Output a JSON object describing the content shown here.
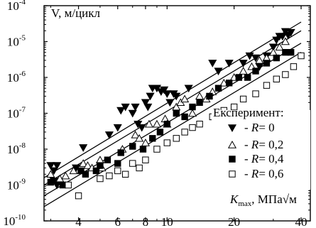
{
  "chart_data": {
    "type": "scatter",
    "title": "",
    "ylabel": "V,  м/цикл",
    "xlabel": {
      "main": "K",
      "subscript": "max",
      "unit": ", МПа√м"
    },
    "x_scale": "log",
    "y_scale": "log",
    "xlim": [
      2.8,
      44
    ],
    "ylim": [
      1e-10,
      0.0001
    ],
    "x_ticks": [
      4,
      6,
      8,
      10,
      20,
      40
    ],
    "x_tick_labels": [
      "4",
      "6",
      "8",
      "10",
      "20",
      "40"
    ],
    "y_ticks": [
      1e-10,
      1e-09,
      1e-08,
      1e-07,
      1e-06,
      1e-05,
      0.0001
    ],
    "y_tick_labels": [
      {
        "base": "10",
        "exponent": "-10"
      },
      {
        "base": "10",
        "exponent": "-9"
      },
      {
        "base": "10",
        "exponent": "-8"
      },
      {
        "base": "10",
        "exponent": "-7"
      },
      {
        "base": "10",
        "exponent": "-6"
      },
      {
        "base": "10",
        "exponent": "-5"
      },
      {
        "base": "10",
        "exponent": "-4"
      }
    ],
    "legend": {
      "title": "Експеримент:",
      "position": "right",
      "entries": [
        {
          "marker": "triangle-down-filled",
          "prefix": "- ",
          "italic": "R",
          "suffix": "= 0"
        },
        {
          "marker": "triangle-up-open",
          "prefix": "- ",
          "italic": "R",
          "suffix": "= 0,2"
        },
        {
          "marker": "square-filled",
          "prefix": "- ",
          "italic": "R",
          "suffix": "= 0,4"
        },
        {
          "marker": "square-open",
          "prefix": "- ",
          "italic": "R",
          "suffix": "= 0,6"
        }
      ]
    },
    "series": [
      {
        "marker": "triangle-down-filled",
        "color": "#000000",
        "fit_line": {
          "x": [
            2.8,
            40.0
          ],
          "y": [
            1.6e-09,
            3.5e-05
          ]
        },
        "points": [
          {
            "x": 3.0,
            "y": 3.5e-09
          },
          {
            "x": 3.1,
            "y": 2.5e-09
          },
          {
            "x": 3.2,
            "y": 3.5e-09
          },
          {
            "x": 3.1,
            "y": 1.3e-09
          },
          {
            "x": 3.2,
            "y": 1e-09
          },
          {
            "x": 3.9,
            "y": 3e-09
          },
          {
            "x": 4.2,
            "y": 1.1e-08
          },
          {
            "x": 5.5,
            "y": 2.5e-08
          },
          {
            "x": 6.0,
            "y": 4e-08
          },
          {
            "x": 6.2,
            "y": 1.2e-07
          },
          {
            "x": 6.5,
            "y": 1.5e-07
          },
          {
            "x": 7.0,
            "y": 1e-07
          },
          {
            "x": 7.2,
            "y": 1.5e-07
          },
          {
            "x": 7.4,
            "y": 5e-08
          },
          {
            "x": 7.7,
            "y": 4e-08
          },
          {
            "x": 8.0,
            "y": 2e-07
          },
          {
            "x": 8.2,
            "y": 1.5e-07
          },
          {
            "x": 8.4,
            "y": 3e-07
          },
          {
            "x": 8.6,
            "y": 5e-07
          },
          {
            "x": 9.0,
            "y": 5e-07
          },
          {
            "x": 9.4,
            "y": 4e-07
          },
          {
            "x": 9.7,
            "y": 4.5e-07
          },
          {
            "x": 10.0,
            "y": 3.5e-07
          },
          {
            "x": 10.3,
            "y": 2e-07
          },
          {
            "x": 10.7,
            "y": 3.5e-07
          },
          {
            "x": 11.0,
            "y": 3e-07
          },
          {
            "x": 12.5,
            "y": 5e-07
          },
          {
            "x": 16.0,
            "y": 2.5e-06
          },
          {
            "x": 17.0,
            "y": 1.5e-06
          },
          {
            "x": 19.0,
            "y": 2.5e-06
          },
          {
            "x": 22.0,
            "y": 2.5e-06
          },
          {
            "x": 23.5,
            "y": 4e-06
          },
          {
            "x": 25.0,
            "y": 3.5e-06
          },
          {
            "x": 26.0,
            "y": 2e-06
          },
          {
            "x": 28.0,
            "y": 4e-06
          },
          {
            "x": 30.0,
            "y": 7e-06
          },
          {
            "x": 31.0,
            "y": 1.1e-05
          },
          {
            "x": 32.0,
            "y": 1.4e-05
          },
          {
            "x": 33.0,
            "y": 1.4e-05
          },
          {
            "x": 34.0,
            "y": 1.9e-05
          },
          {
            "x": 35.0,
            "y": 1.5e-05
          },
          {
            "x": 36.0,
            "y": 1.8e-05
          }
        ]
      },
      {
        "marker": "triangle-up-open",
        "color": "#000000",
        "fit_line": {
          "x": [
            2.8,
            40.0
          ],
          "y": [
            1e-09,
            2e-05
          ]
        },
        "points": [
          {
            "x": 3.0,
            "y": 2e-09
          },
          {
            "x": 3.3,
            "y": 1.5e-09
          },
          {
            "x": 3.5,
            "y": 1.8e-09
          },
          {
            "x": 3.8,
            "y": 2.5e-09
          },
          {
            "x": 4.2,
            "y": 4e-09
          },
          {
            "x": 4.4,
            "y": 3.5e-09
          },
          {
            "x": 4.6,
            "y": 3e-09
          },
          {
            "x": 5.0,
            "y": 5e-09
          },
          {
            "x": 5.1,
            "y": 3e-09
          },
          {
            "x": 6.3,
            "y": 1e-08
          },
          {
            "x": 7.2,
            "y": 2.5e-08
          },
          {
            "x": 7.5,
            "y": 2e-08
          },
          {
            "x": 8.0,
            "y": 1.5e-08
          },
          {
            "x": 8.3,
            "y": 5e-08
          },
          {
            "x": 9.0,
            "y": 5e-08
          },
          {
            "x": 9.8,
            "y": 7e-08
          },
          {
            "x": 10.0,
            "y": 5e-08
          },
          {
            "x": 11.0,
            "y": 1.5e-07
          },
          {
            "x": 11.5,
            "y": 2e-07
          },
          {
            "x": 12.0,
            "y": 2.5e-07
          },
          {
            "x": 13.0,
            "y": 1e-07
          },
          {
            "x": 14.0,
            "y": 3e-07
          },
          {
            "x": 15.0,
            "y": 2.5e-07
          },
          {
            "x": 16.0,
            "y": 4e-07
          },
          {
            "x": 18.0,
            "y": 7e-07
          },
          {
            "x": 20.0,
            "y": 1e-06
          },
          {
            "x": 22.0,
            "y": 1.5e-06
          },
          {
            "x": 24.0,
            "y": 2e-06
          },
          {
            "x": 26.0,
            "y": 3e-06
          },
          {
            "x": 28.0,
            "y": 3.5e-06
          },
          {
            "x": 30.0,
            "y": 5e-06
          },
          {
            "x": 32.0,
            "y": 7e-06
          },
          {
            "x": 34.0,
            "y": 1e-05
          }
        ]
      },
      {
        "marker": "square-filled",
        "color": "#000000",
        "fit_line": {
          "x": [
            2.8,
            40.0
          ],
          "y": [
            5e-10,
            9e-06
          ]
        },
        "points": [
          {
            "x": 3.0,
            "y": 1.2e-09
          },
          {
            "x": 3.4,
            "y": 1e-09
          },
          {
            "x": 4.1,
            "y": 2.5e-09
          },
          {
            "x": 4.3,
            "y": 2e-09
          },
          {
            "x": 4.8,
            "y": 2.5e-09
          },
          {
            "x": 5.0,
            "y": 3.5e-09
          },
          {
            "x": 5.4,
            "y": 5e-09
          },
          {
            "x": 6.0,
            "y": 4e-09
          },
          {
            "x": 6.2,
            "y": 8e-09
          },
          {
            "x": 7.0,
            "y": 1.2e-08
          },
          {
            "x": 7.8,
            "y": 1e-08
          },
          {
            "x": 8.6,
            "y": 2e-08
          },
          {
            "x": 9.3,
            "y": 3e-08
          },
          {
            "x": 10.0,
            "y": 5e-08
          },
          {
            "x": 11.0,
            "y": 1e-07
          },
          {
            "x": 12.0,
            "y": 8e-08
          },
          {
            "x": 13.0,
            "y": 1.5e-07
          },
          {
            "x": 14.0,
            "y": 2e-07
          },
          {
            "x": 15.5,
            "y": 3e-07
          },
          {
            "x": 17.0,
            "y": 5e-07
          },
          {
            "x": 19.0,
            "y": 7e-07
          },
          {
            "x": 21.0,
            "y": 1e-06
          },
          {
            "x": 23.0,
            "y": 1e-06
          },
          {
            "x": 25.0,
            "y": 1.5e-06
          },
          {
            "x": 28.0,
            "y": 2.5e-06
          },
          {
            "x": 31.0,
            "y": 3.5e-06
          },
          {
            "x": 34.0,
            "y": 5e-06
          },
          {
            "x": 36.0,
            "y": 5e-06
          }
        ]
      },
      {
        "marker": "square-open",
        "color": "#000000",
        "fit_line": {
          "x": [
            2.8,
            40.0
          ],
          "y": [
            2.5e-10,
            5e-06
          ]
        },
        "points": [
          {
            "x": 3.6,
            "y": 1e-09
          },
          {
            "x": 4.0,
            "y": 5e-10
          },
          {
            "x": 5.0,
            "y": 1.5e-09
          },
          {
            "x": 5.5,
            "y": 1.8e-09
          },
          {
            "x": 6.0,
            "y": 2.5e-09
          },
          {
            "x": 6.5,
            "y": 2e-09
          },
          {
            "x": 7.0,
            "y": 4e-09
          },
          {
            "x": 7.5,
            "y": 3e-09
          },
          {
            "x": 8.0,
            "y": 5e-09
          },
          {
            "x": 9.0,
            "y": 1e-08
          },
          {
            "x": 10.0,
            "y": 1.5e-08
          },
          {
            "x": 11.0,
            "y": 2e-08
          },
          {
            "x": 12.0,
            "y": 3e-08
          },
          {
            "x": 13.0,
            "y": 4e-08
          },
          {
            "x": 14.0,
            "y": 5e-08
          },
          {
            "x": 16.0,
            "y": 8e-08
          },
          {
            "x": 18.0,
            "y": 1.2e-07
          },
          {
            "x": 20.0,
            "y": 1.5e-07
          },
          {
            "x": 22.0,
            "y": 2.5e-07
          },
          {
            "x": 25.0,
            "y": 3.5e-07
          },
          {
            "x": 28.0,
            "y": 6e-07
          },
          {
            "x": 31.0,
            "y": 9e-07
          },
          {
            "x": 34.0,
            "y": 1.2e-06
          },
          {
            "x": 37.0,
            "y": 2e-06
          },
          {
            "x": 40.0,
            "y": 4e-06
          }
        ]
      }
    ]
  }
}
